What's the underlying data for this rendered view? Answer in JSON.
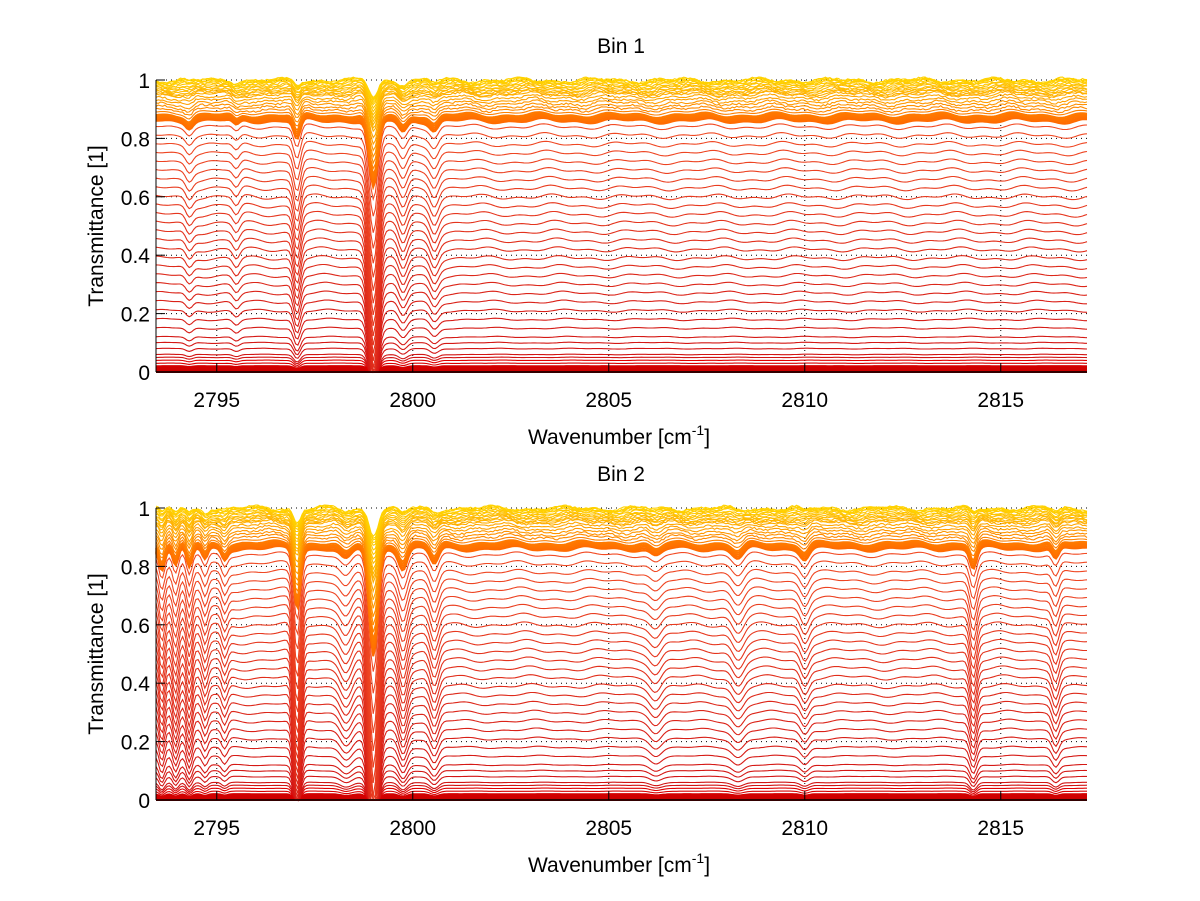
{
  "figure": {
    "background": "#ffffff"
  },
  "chart_data": [
    {
      "type": "line",
      "title": "Bin 1",
      "xlabel": "Wavenumber [cm",
      "xlabel_superscript": "-1",
      "xlabel_suffix": "]",
      "ylabel": "Transmittance [1]",
      "xlim": [
        2793.45,
        2817.2
      ],
      "ylim": [
        0,
        1
      ],
      "xticks": [
        2795,
        2800,
        2805,
        2810,
        2815
      ],
      "xtick_labels": [
        "2795",
        "2800",
        "2805",
        "2810",
        "2815"
      ],
      "yticks": [
        0,
        0.2,
        0.4,
        0.6,
        0.8,
        1
      ],
      "ytick_labels": [
        "0",
        "0.2",
        "0.4",
        "0.6",
        "0.8",
        "1"
      ],
      "grid": "dotted",
      "legend": "none",
      "colormap": "autumn-like (dark red at low transmittance to orange/yellow near 1)",
      "series_count": 60,
      "series_description": "Family of transmittance spectra at increasing baseline levels from about 0.0 to 1.0; many curves cluster near 0.86-0.88 and 0.9-1.0",
      "baseline_levels": [
        0.0,
        0.005,
        0.01,
        0.015,
        0.02,
        0.03,
        0.04,
        0.05,
        0.06,
        0.08,
        0.1,
        0.12,
        0.15,
        0.18,
        0.21,
        0.24,
        0.27,
        0.3,
        0.33,
        0.36,
        0.39,
        0.42,
        0.45,
        0.48,
        0.51,
        0.54,
        0.57,
        0.6,
        0.63,
        0.66,
        0.69,
        0.72,
        0.75,
        0.78,
        0.81,
        0.84,
        0.86,
        0.865,
        0.87,
        0.875,
        0.88,
        0.89,
        0.9,
        0.91,
        0.92,
        0.93,
        0.94,
        0.95,
        0.955,
        0.96,
        0.965,
        0.97,
        0.975,
        0.98,
        0.985,
        0.99,
        0.993,
        0.996,
        0.998,
        1.0
      ],
      "absorption_lines": [
        {
          "center": 2797.05,
          "depth": 0.1,
          "width": 0.12
        },
        {
          "center": 2799.0,
          "depth": 0.35,
          "width": 0.16
        },
        {
          "center": 2799.75,
          "depth": 0.06,
          "width": 0.15
        },
        {
          "center": 2800.55,
          "depth": 0.05,
          "width": 0.15
        },
        {
          "center": 2794.3,
          "depth": 0.03,
          "width": 0.12
        },
        {
          "center": 2795.5,
          "depth": 0.03,
          "width": 0.12
        }
      ]
    },
    {
      "type": "line",
      "title": "Bin 2",
      "xlabel": "Wavenumber [cm",
      "xlabel_superscript": "-1",
      "xlabel_suffix": "]",
      "ylabel": "Transmittance [1]",
      "xlim": [
        2793.45,
        2817.2
      ],
      "ylim": [
        0,
        1
      ],
      "xticks": [
        2795,
        2800,
        2805,
        2810,
        2815
      ],
      "xtick_labels": [
        "2795",
        "2800",
        "2805",
        "2810",
        "2815"
      ],
      "yticks": [
        0,
        0.2,
        0.4,
        0.6,
        0.8,
        1
      ],
      "ytick_labels": [
        "0",
        "0.2",
        "0.4",
        "0.6",
        "0.8",
        "1"
      ],
      "grid": "dotted",
      "legend": "none",
      "colormap": "autumn-like (dark red at low transmittance to orange/yellow near 1)",
      "series_count": 60,
      "series_description": "Family of transmittance spectra at increasing baseline levels from about 0.0 to 1.0 with stronger absorption features than Bin 1",
      "baseline_levels": [
        0.0,
        0.005,
        0.01,
        0.015,
        0.02,
        0.03,
        0.04,
        0.05,
        0.06,
        0.08,
        0.1,
        0.12,
        0.15,
        0.18,
        0.21,
        0.24,
        0.27,
        0.3,
        0.33,
        0.36,
        0.39,
        0.42,
        0.45,
        0.48,
        0.51,
        0.54,
        0.57,
        0.6,
        0.63,
        0.66,
        0.69,
        0.72,
        0.75,
        0.78,
        0.81,
        0.84,
        0.86,
        0.865,
        0.87,
        0.875,
        0.88,
        0.89,
        0.9,
        0.91,
        0.92,
        0.93,
        0.94,
        0.95,
        0.955,
        0.96,
        0.965,
        0.97,
        0.975,
        0.98,
        0.985,
        0.99,
        0.993,
        0.996,
        0.998,
        1.0
      ],
      "absorption_lines": [
        {
          "center": 2793.6,
          "depth": 0.1,
          "width": 0.1
        },
        {
          "center": 2793.95,
          "depth": 0.09,
          "width": 0.1
        },
        {
          "center": 2794.3,
          "depth": 0.1,
          "width": 0.1
        },
        {
          "center": 2794.7,
          "depth": 0.06,
          "width": 0.1
        },
        {
          "center": 2795.2,
          "depth": 0.05,
          "width": 0.1
        },
        {
          "center": 2797.05,
          "depth": 0.3,
          "width": 0.12
        },
        {
          "center": 2798.3,
          "depth": 0.06,
          "width": 0.2
        },
        {
          "center": 2799.0,
          "depth": 0.55,
          "width": 0.16
        },
        {
          "center": 2799.75,
          "depth": 0.1,
          "width": 0.15
        },
        {
          "center": 2800.55,
          "depth": 0.08,
          "width": 0.15
        },
        {
          "center": 2806.2,
          "depth": 0.04,
          "width": 0.2
        },
        {
          "center": 2808.3,
          "depth": 0.05,
          "width": 0.2
        },
        {
          "center": 2810.0,
          "depth": 0.05,
          "width": 0.15
        },
        {
          "center": 2814.3,
          "depth": 0.1,
          "width": 0.12
        },
        {
          "center": 2816.4,
          "depth": 0.06,
          "width": 0.12
        }
      ]
    }
  ]
}
